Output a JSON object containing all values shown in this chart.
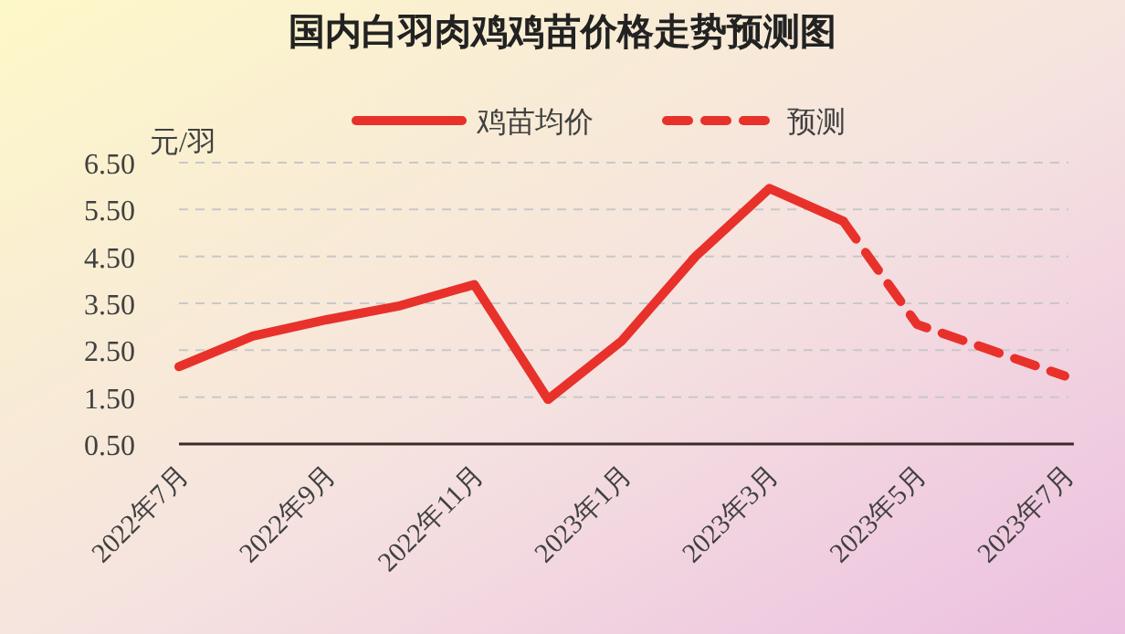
{
  "chart_data": {
    "type": "line",
    "title": "国内白羽肉鸡鸡苗价格走势预测图",
    "ylabel": "元/羽",
    "categories": [
      "2022年7月",
      null,
      "2022年9月",
      null,
      "2022年11月",
      null,
      "2023年1月",
      null,
      "2023年3月",
      null,
      "2023年5月",
      null,
      "2023年7月"
    ],
    "series": [
      {
        "name": "鸡苗均价",
        "color": "#e8312a",
        "line_style": "solid",
        "values": [
          2.15,
          2.8,
          3.15,
          3.45,
          3.9,
          1.45,
          2.7,
          4.5,
          5.95,
          5.25,
          null,
          null,
          null
        ]
      },
      {
        "name": "预测",
        "color": "#e8312a",
        "line_style": "dashed",
        "values": [
          null,
          null,
          null,
          null,
          null,
          null,
          null,
          null,
          null,
          5.25,
          3.05,
          2.5,
          1.95
        ]
      }
    ],
    "ylim": [
      0.5,
      6.5
    ],
    "yticks": [
      {
        "value": 0.5,
        "label": "0.50"
      },
      {
        "value": 1.5,
        "label": "1.50"
      },
      {
        "value": 2.5,
        "label": "2.50"
      },
      {
        "value": 3.5,
        "label": "3.50"
      },
      {
        "value": 4.5,
        "label": "4.50"
      },
      {
        "value": 5.5,
        "label": "5.50"
      },
      {
        "value": 6.5,
        "label": "6.50"
      }
    ],
    "grid": "y",
    "legend": "top",
    "marker": "none"
  }
}
